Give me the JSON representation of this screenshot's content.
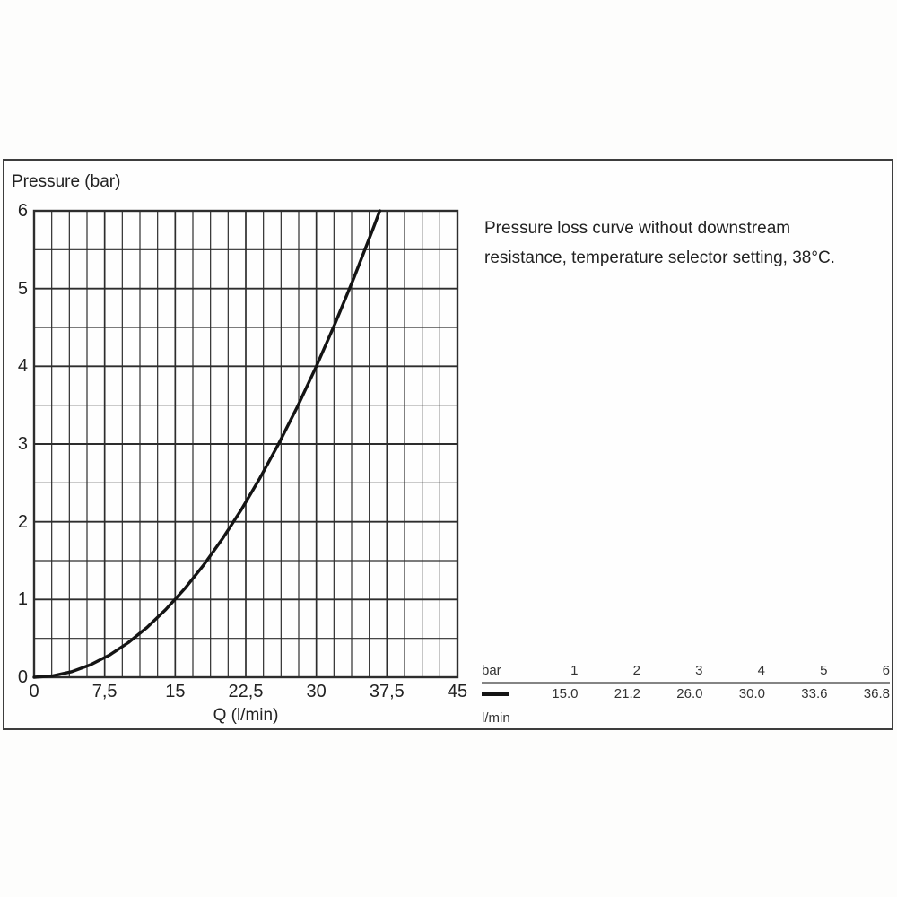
{
  "chart_data": {
    "type": "line",
    "title": "",
    "ylabel": "Pressure (bar)",
    "xlabel": "Q (l/min)",
    "x_range": [
      0,
      45
    ],
    "y_range": [
      0,
      6
    ],
    "x_minor_step": 1.875,
    "x_major_step": 7.5,
    "y_minor_step": 0.5,
    "y_major_step": 1,
    "grid": true,
    "legend_position": "bottom-right-table",
    "x_tick_values": [
      0,
      7.5,
      15,
      22.5,
      30,
      37.5,
      45
    ],
    "x_tick_labels": [
      "0",
      "7,5",
      "15",
      "22,5",
      "30",
      "37,5",
      "45"
    ],
    "y_tick_values": [
      0,
      1,
      2,
      3,
      4,
      5,
      6
    ],
    "y_tick_labels": [
      "0",
      "1",
      "2",
      "3",
      "4",
      "5",
      "6"
    ],
    "curve_color": "#141414",
    "grid_color": "#2d2d2d",
    "series": [
      {
        "name": "pressure-loss-curve",
        "points": [
          [
            0,
            0
          ],
          [
            2,
            0.018
          ],
          [
            4,
            0.071
          ],
          [
            6,
            0.16
          ],
          [
            8,
            0.284
          ],
          [
            10,
            0.444
          ],
          [
            12,
            0.64
          ],
          [
            14,
            0.871
          ],
          [
            16,
            1.138
          ],
          [
            18,
            1.44
          ],
          [
            20,
            1.778
          ],
          [
            22,
            2.151
          ],
          [
            24,
            2.56
          ],
          [
            26,
            3.004
          ],
          [
            28,
            3.484
          ],
          [
            30,
            4.0
          ],
          [
            32,
            4.551
          ],
          [
            34,
            5.138
          ],
          [
            36,
            5.76
          ],
          [
            36.74,
            6.0
          ]
        ]
      }
    ],
    "calibration_points": {
      "bar": [
        1,
        2,
        3,
        4,
        5,
        6
      ],
      "l_min": [
        15.0,
        21.2,
        26.0,
        30.0,
        33.6,
        36.8
      ]
    }
  },
  "annotation": {
    "line1": "Pressure loss curve without downstream",
    "line2": "resistance, temperature selector setting, 38°C."
  },
  "table": {
    "header_label": "bar",
    "unit_label": "l/min",
    "columns": [
      "1",
      "2",
      "3",
      "4",
      "5",
      "6"
    ],
    "values": [
      "15.0",
      "21.2",
      "26.0",
      "30.0",
      "33.6",
      "36.8"
    ]
  }
}
